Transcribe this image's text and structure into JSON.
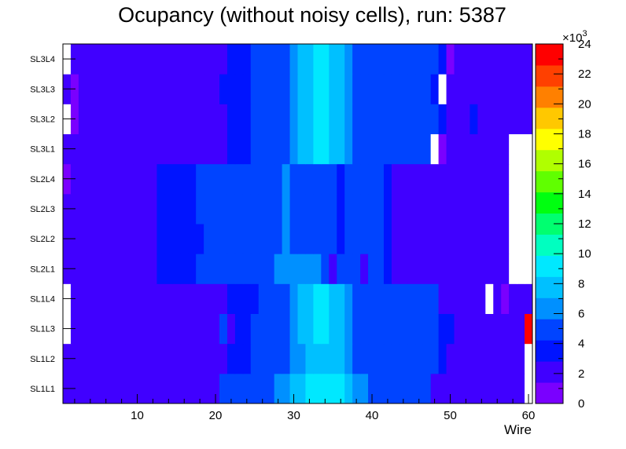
{
  "chart_data": {
    "type": "heatmap",
    "title": "Ocupancy (without noisy cells), run: 5387",
    "xlabel": "Wire",
    "ylabel": "",
    "xlim": [
      0.5,
      60.5
    ],
    "x_ticks": [
      "10",
      "20",
      "30",
      "40",
      "50",
      "60"
    ],
    "layers": [
      "SL1L1",
      "SL1L2",
      "SL1L3",
      "SL1L4",
      "SL2L1",
      "SL2L2",
      "SL2L3",
      "SL2L4",
      "SL3L1",
      "SL3L2",
      "SL3L3",
      "SL3L4"
    ],
    "colorbar": {
      "min": 0,
      "max": 24,
      "multiplier": "×10",
      "multiplier_exp": "3",
      "labels": [
        "0",
        "2",
        "4",
        "6",
        "8",
        "10",
        "12",
        "14",
        "16",
        "18",
        "20",
        "22",
        "24"
      ]
    },
    "palette": [
      "#7a00ff",
      "#4000ff",
      "#0014ff",
      "#0044ff",
      "#0090ff",
      "#00c0ff",
      "#00e8ff",
      "#00ffc0",
      "#00ff70",
      "#00ff10",
      "#60ff00",
      "#b0ff00",
      "#ffff00",
      "#ffc800",
      "#ff8000",
      "#ff4000",
      "#ff0000"
    ],
    "rows": [
      [
        1,
        1,
        1,
        2,
        2,
        2,
        2,
        2,
        2,
        2,
        2,
        2,
        2,
        2,
        1,
        2,
        2,
        2,
        2,
        2,
        4,
        4,
        4,
        5,
        5,
        5,
        5,
        6,
        6,
        7,
        8,
        9,
        9,
        9,
        9,
        9,
        8,
        6,
        6,
        5,
        5,
        4,
        4,
        4,
        4,
        4,
        4,
        2,
        2,
        1,
        1,
        1,
        2,
        2,
        2,
        2,
        1,
        1,
        1,
        0
      ],
      [
        1,
        1,
        1,
        1,
        2,
        2,
        2,
        2,
        2,
        2,
        2,
        2,
        2,
        2,
        2,
        2,
        2,
        2,
        2,
        2,
        2,
        3,
        3,
        3,
        4,
        4,
        4,
        5,
        5,
        6,
        6,
        7,
        8,
        8,
        8,
        7,
        6,
        5,
        5,
        5,
        5,
        4,
        4,
        4,
        4,
        4,
        4,
        4,
        3,
        2,
        2,
        2,
        2,
        2,
        2,
        2,
        2,
        2,
        2,
        1
      ],
      [
        1,
        1,
        1,
        1,
        2,
        2,
        2,
        2,
        2,
        2,
        2,
        2,
        2,
        2,
        2,
        2,
        2,
        2,
        2,
        2,
        5,
        2,
        3,
        3,
        4,
        4,
        4,
        5,
        5,
        6,
        7,
        8,
        9,
        9,
        8,
        7,
        6,
        5,
        5,
        5,
        4,
        4,
        4,
        4,
        4,
        4,
        4,
        4,
        3,
        3,
        2,
        2,
        2,
        2,
        2,
        1,
        1,
        1,
        2,
        24
      ],
      [
        0,
        1,
        1,
        1,
        1,
        2,
        2,
        2,
        2,
        2,
        2,
        2,
        2,
        2,
        2,
        2,
        2,
        2,
        2,
        2,
        2,
        3,
        3,
        3,
        3,
        4,
        4,
        5,
        5,
        6,
        7,
        8,
        9,
        9,
        8,
        7,
        6,
        5,
        5,
        4,
        4,
        4,
        4,
        4,
        4,
        4,
        4,
        4,
        2,
        2,
        2,
        2,
        2,
        2,
        2,
        2,
        0,
        1,
        1,
        1
      ],
      [
        1,
        2,
        2,
        2,
        2,
        2,
        2,
        2,
        2,
        2,
        2,
        2,
        3,
        3,
        3,
        3,
        3,
        4,
        4,
        4,
        4,
        4,
        4,
        4,
        5,
        5,
        5,
        6,
        6,
        6,
        6,
        6,
        6,
        5,
        1,
        5,
        5,
        5,
        2,
        5,
        5,
        3,
        2,
        2,
        2,
        2,
        2,
        2,
        2,
        2,
        2,
        2,
        2,
        2,
        2,
        2,
        1,
        0,
        0,
        0
      ],
      [
        1,
        2,
        2,
        2,
        2,
        2,
        2,
        2,
        2,
        2,
        2,
        2,
        3,
        3,
        3,
        3,
        3,
        3,
        4,
        4,
        4,
        4,
        4,
        4,
        5,
        5,
        5,
        5,
        6,
        5,
        5,
        5,
        5,
        4,
        4,
        3,
        4,
        4,
        4,
        4,
        4,
        3,
        2,
        2,
        2,
        2,
        2,
        2,
        2,
        2,
        2,
        2,
        2,
        2,
        2,
        2,
        1,
        0,
        0,
        0
      ],
      [
        1,
        2,
        2,
        2,
        2,
        2,
        2,
        2,
        2,
        2,
        2,
        2,
        3,
        3,
        3,
        3,
        3,
        4,
        4,
        4,
        4,
        4,
        4,
        4,
        5,
        5,
        5,
        5,
        6,
        5,
        5,
        5,
        5,
        4,
        4,
        3,
        4,
        4,
        4,
        4,
        4,
        3,
        2,
        2,
        2,
        2,
        2,
        2,
        2,
        2,
        2,
        2,
        2,
        2,
        2,
        2,
        1,
        0,
        0,
        0
      ],
      [
        0,
        2,
        2,
        2,
        2,
        2,
        2,
        2,
        2,
        2,
        2,
        2,
        3,
        3,
        3,
        3,
        3,
        4,
        4,
        4,
        4,
        4,
        4,
        4,
        5,
        5,
        5,
        5,
        6,
        5,
        5,
        5,
        5,
        4,
        4,
        3,
        4,
        4,
        4,
        4,
        4,
        3,
        2,
        2,
        2,
        2,
        2,
        2,
        2,
        2,
        2,
        2,
        2,
        2,
        2,
        2,
        2,
        0,
        0,
        0
      ],
      [
        1,
        1,
        1,
        1,
        2,
        2,
        2,
        2,
        2,
        2,
        2,
        2,
        2,
        2,
        2,
        1,
        2,
        2,
        2,
        2,
        2,
        3,
        3,
        3,
        4,
        4,
        4,
        5,
        5,
        6,
        7,
        8,
        9,
        9,
        8,
        7,
        6,
        5,
        5,
        4,
        4,
        4,
        4,
        4,
        4,
        4,
        4,
        4,
        0,
        2,
        2,
        2,
        2,
        2,
        2,
        2,
        2,
        2,
        0,
        1
      ],
      [
        1,
        0,
        1,
        1,
        1,
        2,
        2,
        2,
        2,
        2,
        2,
        2,
        2,
        2,
        2,
        2,
        2,
        2,
        2,
        2,
        2,
        3,
        3,
        3,
        4,
        4,
        4,
        5,
        5,
        6,
        7,
        8,
        9,
        9,
        8,
        7,
        6,
        5,
        5,
        5,
        4,
        4,
        4,
        4,
        4,
        4,
        4,
        4,
        3,
        2,
        2,
        2,
        3,
        2,
        2,
        2,
        2,
        2,
        1,
        1
      ],
      [
        1,
        0,
        1,
        1,
        1,
        2,
        2,
        2,
        2,
        2,
        2,
        2,
        2,
        2,
        2,
        2,
        2,
        2,
        2,
        2,
        3,
        3,
        3,
        3,
        4,
        4,
        4,
        5,
        5,
        6,
        7,
        8,
        9,
        9,
        8,
        7,
        6,
        5,
        5,
        5,
        4,
        4,
        4,
        4,
        4,
        4,
        4,
        3,
        2,
        2,
        1,
        2,
        2,
        2,
        2,
        2,
        2,
        2,
        1,
        2
      ],
      [
        0,
        1,
        1,
        1,
        2,
        2,
        2,
        2,
        2,
        2,
        2,
        2,
        2,
        2,
        2,
        2,
        2,
        2,
        2,
        2,
        2,
        3,
        3,
        3,
        4,
        4,
        4,
        5,
        5,
        6,
        7,
        8,
        9,
        9,
        8,
        7,
        6,
        5,
        5,
        5,
        4,
        4,
        4,
        4,
        4,
        4,
        4,
        4,
        3,
        0,
        2,
        2,
        2,
        2,
        2,
        2,
        2,
        2,
        1,
        1
      ]
    ],
    "empty_cells": [
      [
        3,
        1
      ],
      [
        2,
        1
      ],
      [
        1,
        60
      ],
      [
        4,
        60
      ],
      [
        8,
        48
      ],
      [
        9,
        1
      ],
      [
        10,
        49
      ],
      [
        11,
        1
      ],
      [
        4,
        58
      ],
      [
        5,
        58
      ],
      [
        6,
        58
      ],
      [
        7,
        58
      ],
      [
        8,
        58
      ],
      [
        4,
        59
      ],
      [
        5,
        59
      ],
      [
        6,
        59
      ],
      [
        7,
        59
      ],
      [
        8,
        59
      ],
      [
        4,
        60
      ],
      [
        5,
        60
      ],
      [
        6,
        60
      ],
      [
        7,
        60
      ],
      [
        8,
        60
      ],
      [
        3,
        55
      ],
      [
        0,
        60
      ]
    ]
  }
}
